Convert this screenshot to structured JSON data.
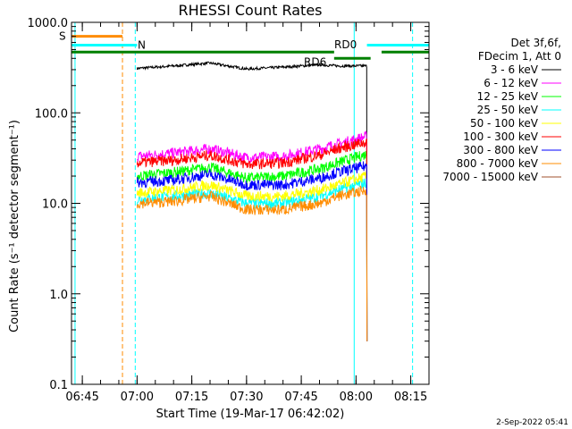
{
  "chart_data": {
    "type": "line",
    "title": "RHESSI Count Rates",
    "xlabel": "Start Time (19-Mar-17 06:42:02)",
    "ylabel": "Count Rate (s⁻¹ detector segment⁻¹)",
    "y_scale": "log",
    "ylim": [
      0.1,
      1000
    ],
    "xlim": [
      "06:42:02",
      "08:20:00"
    ],
    "x_ticks": [
      "06:45",
      "07:00",
      "07:15",
      "07:30",
      "07:45",
      "08:00",
      "08:15"
    ],
    "y_ticks": [
      "1000.0",
      "100.0",
      "10.0",
      "1.0",
      "0.1"
    ],
    "legend_position": "right",
    "legend_header": [
      "Det 3f,6f,",
      "FDecim 1, Att 0"
    ],
    "series": [
      {
        "name": "3 - 6 keV",
        "color": "#000000",
        "x": [
          "07:00",
          "07:10",
          "07:20",
          "07:30",
          "07:40",
          "07:50",
          "07:55",
          "08:03"
        ],
        "values": [
          310,
          330,
          355,
          305,
          320,
          340,
          330,
          330
        ]
      },
      {
        "name": "6 - 12 keV",
        "color": "#ff00ff",
        "x": [
          "07:00",
          "07:10",
          "07:20",
          "07:30",
          "07:40",
          "07:50",
          "07:55",
          "08:03"
        ],
        "values": [
          33,
          36,
          40,
          32,
          33,
          40,
          45,
          55
        ]
      },
      {
        "name": "12 - 25 keV",
        "color": "#00ff00",
        "x": [
          "07:00",
          "07:10",
          "07:20",
          "07:30",
          "07:40",
          "07:50",
          "07:55",
          "08:03"
        ],
        "values": [
          20,
          22,
          25,
          19,
          20,
          24,
          28,
          35
        ]
      },
      {
        "name": "25 - 50 keV",
        "color": "#00ffff",
        "x": [
          "07:00",
          "07:10",
          "07:20",
          "07:30",
          "07:40",
          "07:50",
          "07:55",
          "08:03"
        ],
        "values": [
          11,
          12,
          13,
          10,
          10,
          12,
          14,
          17
        ]
      },
      {
        "name": "50 - 100 keV",
        "color": "#ffff00",
        "x": [
          "07:00",
          "07:10",
          "07:20",
          "07:30",
          "07:40",
          "07:50",
          "07:55",
          "08:03"
        ],
        "values": [
          13,
          14,
          16,
          12,
          12,
          14,
          16,
          20
        ]
      },
      {
        "name": "100 - 300 keV",
        "color": "#ff0000",
        "x": [
          "07:00",
          "07:10",
          "07:20",
          "07:30",
          "07:40",
          "07:50",
          "07:55",
          "08:03"
        ],
        "values": [
          28,
          30,
          34,
          27,
          28,
          34,
          40,
          48
        ]
      },
      {
        "name": "300 - 800 keV",
        "color": "#0000ff",
        "x": [
          "07:00",
          "07:10",
          "07:20",
          "07:30",
          "07:40",
          "07:50",
          "07:55",
          "08:03"
        ],
        "values": [
          17,
          18,
          21,
          16,
          16,
          19,
          22,
          26
        ]
      },
      {
        "name": "800 - 7000 keV",
        "color": "#ff8c00",
        "x": [
          "07:00",
          "07:10",
          "07:20",
          "07:30",
          "07:40",
          "07:50",
          "07:55",
          "08:03"
        ],
        "values": [
          10,
          10.5,
          12,
          8.5,
          8.5,
          10,
          12,
          14
        ]
      },
      {
        "name": "7000 - 15000 keV",
        "color": "#a0522d",
        "x": [],
        "values": []
      }
    ],
    "time_bars": [
      {
        "label": "S",
        "color": "#ff8c00",
        "start": "06:42:02",
        "end": "06:56:00",
        "level": 700
      },
      {
        "label": "N",
        "color": "#00ffff",
        "start": "06:42:02",
        "end": "07:00:00",
        "level": 560
      },
      {
        "label": "N",
        "color": "#00ffff",
        "start": "08:03:00",
        "end": "08:20:00",
        "level": 560
      },
      {
        "label": "RD0",
        "color": "#008000",
        "start": "06:42:02",
        "end": "07:54:00",
        "level": 470
      },
      {
        "label": "RD0",
        "color": "#008000",
        "start": "08:07:00",
        "end": "08:20:00",
        "level": 470
      },
      {
        "label": "RD6",
        "color": "#008000",
        "start": "07:54:00",
        "end": "08:04:00",
        "level": 400
      }
    ],
    "vertical_lines": [
      {
        "time": "06:43:00",
        "color": "#00ffff",
        "style": "solid"
      },
      {
        "time": "06:56:00",
        "color": "#ff8c00",
        "style": "dashed"
      },
      {
        "time": "06:59:30",
        "color": "#00ffff",
        "style": "dashed"
      },
      {
        "time": "07:59:30",
        "color": "#00ffff",
        "style": "solid"
      },
      {
        "time": "08:15:30",
        "color": "#00ffff",
        "style": "dashed"
      }
    ]
  },
  "footer": {
    "date": "2-Sep-2022 05:41"
  }
}
